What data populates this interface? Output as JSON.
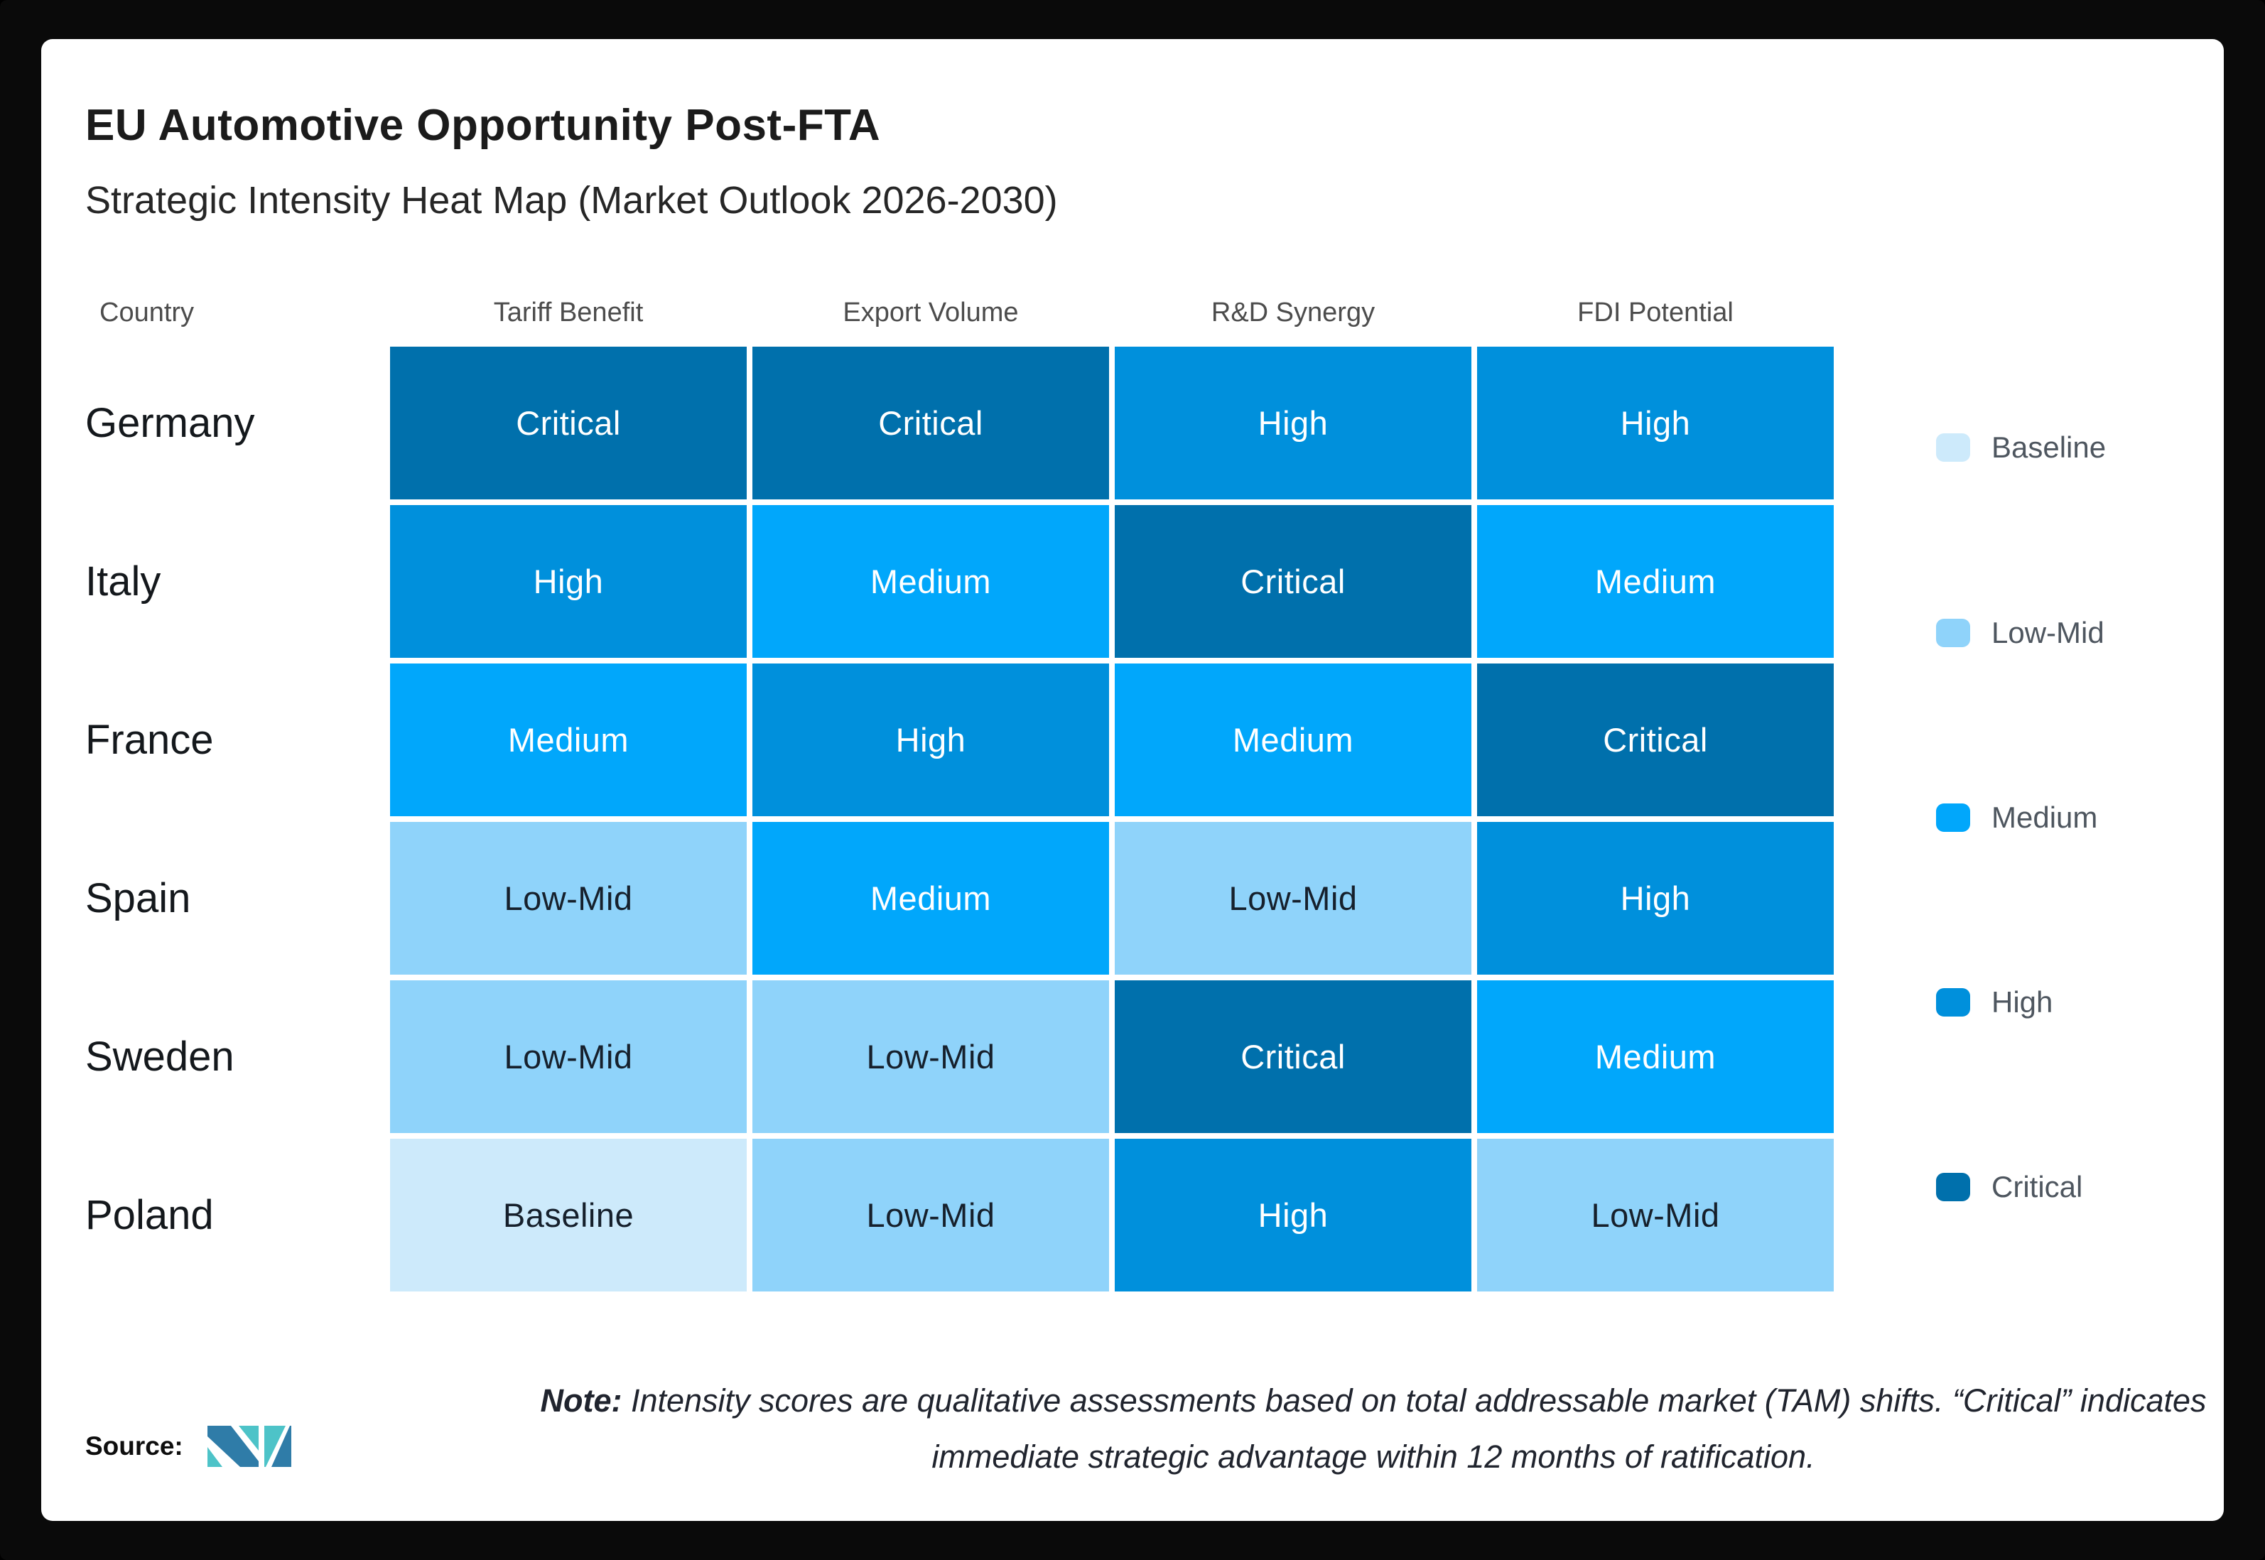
{
  "header": {
    "title": "EU Automotive Opportunity Post-FTA",
    "subtitle": "Strategic Intensity Heat Map (Market Outlook 2026-2030)"
  },
  "chart_data": {
    "type": "heatmap",
    "title": "EU Automotive Opportunity Post-FTA",
    "subtitle": "Strategic Intensity Heat Map (Market Outlook 2026-2030)",
    "row_header": "Country",
    "columns": [
      "Tariff Benefit",
      "Export Volume",
      "R&D Synergy",
      "FDI Potential"
    ],
    "rows": [
      {
        "country": "Germany",
        "values": [
          "Critical",
          "Critical",
          "High",
          "High"
        ]
      },
      {
        "country": "Italy",
        "values": [
          "High",
          "Medium",
          "Critical",
          "Medium"
        ]
      },
      {
        "country": "France",
        "values": [
          "Medium",
          "High",
          "Medium",
          "Critical"
        ]
      },
      {
        "country": "Spain",
        "values": [
          "Low-Mid",
          "Medium",
          "Low-Mid",
          "High"
        ]
      },
      {
        "country": "Sweden",
        "values": [
          "Low-Mid",
          "Low-Mid",
          "Critical",
          "Medium"
        ]
      },
      {
        "country": "Poland",
        "values": [
          "Baseline",
          "Low-Mid",
          "High",
          "Low-Mid"
        ]
      }
    ],
    "legend": [
      "Baseline",
      "Low-Mid",
      "Medium",
      "High",
      "Critical"
    ],
    "legend_position": "right",
    "levels": {
      "Baseline": {
        "color": "#CDEAFB",
        "text": "#16202C"
      },
      "Low-Mid": {
        "color": "#8FD3FA",
        "text": "#16202C"
      },
      "Medium": {
        "color": "#01A7FB",
        "text": "#FFFFFF"
      },
      "High": {
        "color": "#0090DC",
        "text": "#FFFFFF"
      },
      "Critical": {
        "color": "#0070AC",
        "text": "#FFFFFF"
      }
    }
  },
  "note": {
    "label": "Note:",
    "text": " Intensity scores are qualitative assessments based on total addressable market (TAM) shifts. “Critical” indicates immediate strategic advantage within 12 months of ratification."
  },
  "source": {
    "label": "Source:",
    "logo": {
      "name": "mordor-intelligence-logo",
      "blue": "#2F7CA8",
      "teal": "#4DC3C8"
    }
  }
}
